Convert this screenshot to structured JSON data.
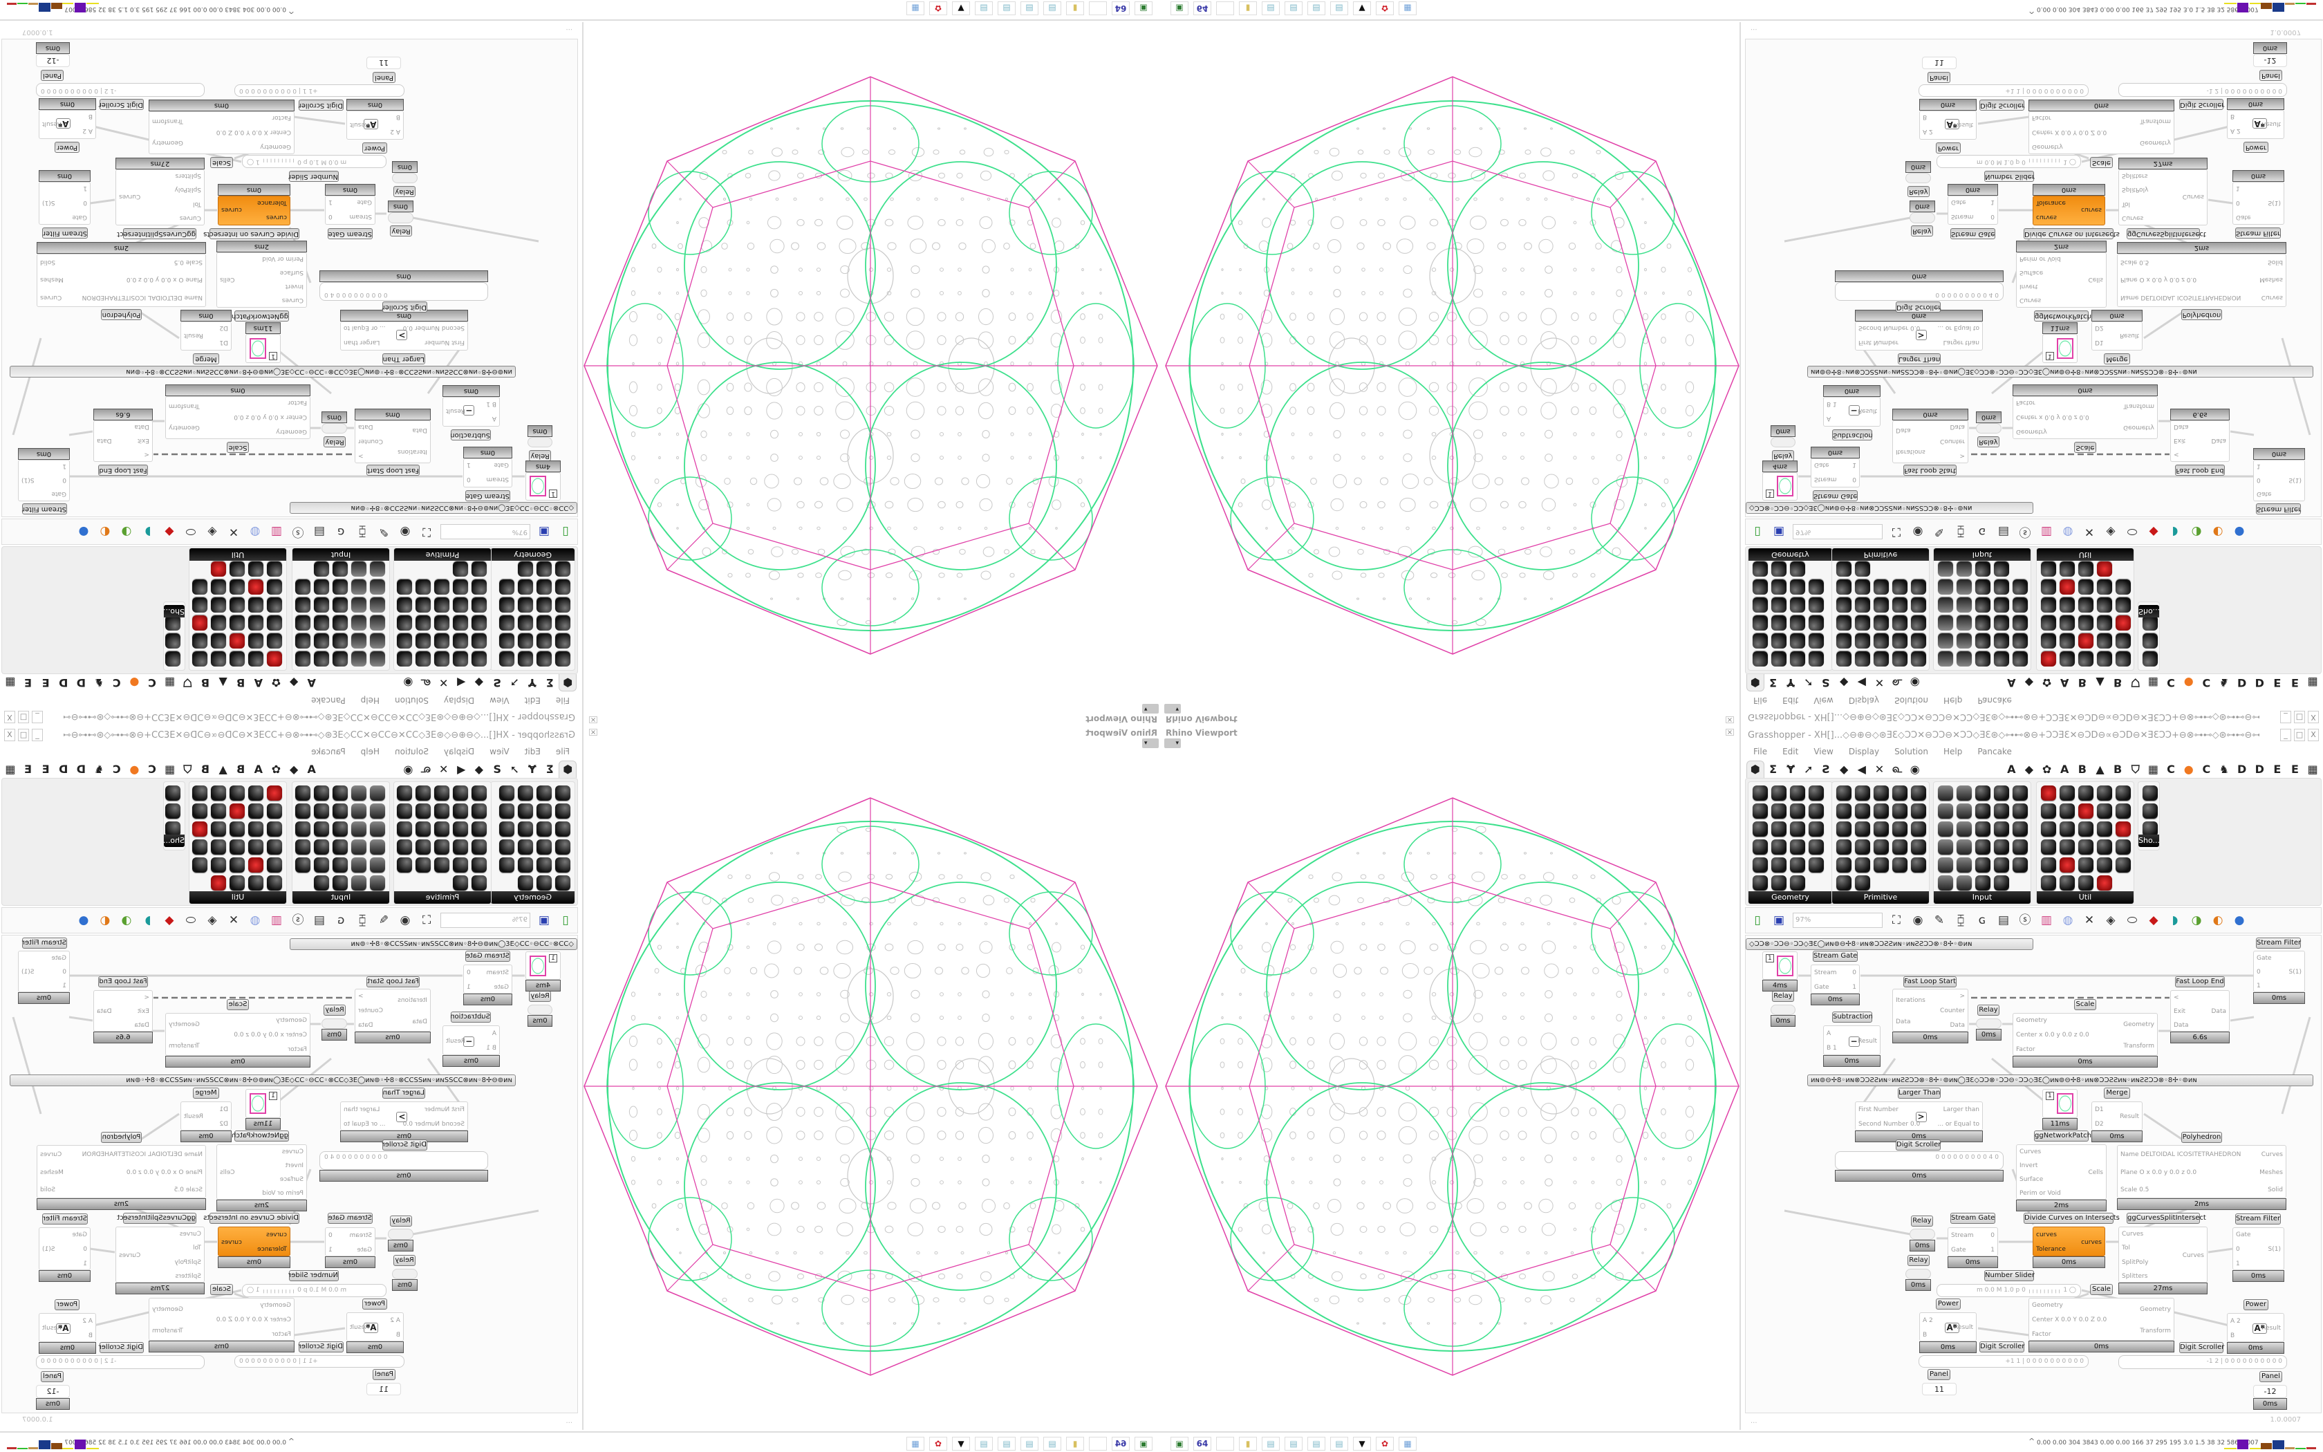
{
  "viewport": {
    "title": "Rhino Viewport",
    "close_glyph": "×",
    "dropdown_glyph": "▾"
  },
  "colors": {
    "octagon": "#e040a8",
    "network": "#3de08c",
    "pattern": "#c8c8c8",
    "highlight": "#f7941d"
  },
  "grasshopper": {
    "title": "Grasshopper - XH[]...◇⊖⊕⊖◇⊛ƎƐ◇ƆƆ✕⊖ƆƆ⊖✕ƆƆ◇ƎƐ⊛◇⊶⊷⊗⊖+ƆƆƎƐ✕⊖ƆD⊖∝⊖ƆD⊖✕ƎƐƆƆ+⊖⊗⊶⊷◇⊛⊶⊷⊖⊶⊷⊗◇⊗++⊗◇⊗⊶⊷⊖⊶⊷⊛◇⊶⊷⊗⊖+ƆƆƎƐ✕⊖ƆD⊖✕⊖",
    "window_buttons": [
      "_",
      "□",
      "X"
    ],
    "menu": [
      "File",
      "Edit",
      "View",
      "Display",
      "Solution",
      "Help",
      "Pancake"
    ],
    "tabs_left": [
      "⬢",
      "Σ",
      "Ɏ",
      "➚",
      "Ꙅ",
      "◆",
      "◀",
      "✕",
      "௳",
      "◉"
    ],
    "tabs_right": [
      "A",
      "◆",
      "✿",
      "A",
      "B",
      "▲",
      "B",
      "⛉",
      "▦",
      "C",
      "●",
      "C",
      "♞",
      "D",
      "D",
      "E",
      "E",
      "▦"
    ],
    "panels": [
      {
        "label": "Geometry"
      },
      {
        "label": "Primitive"
      },
      {
        "label": "Input"
      },
      {
        "label": "Util"
      },
      {
        "label": "Sho..."
      }
    ],
    "toolbar": {
      "zoom": "97%",
      "icons": [
        "new-file",
        "save",
        "zoom-extents",
        "preview-eye",
        "sketch",
        "bake",
        "gha",
        "document",
        "search",
        "package",
        "bulb",
        "wires",
        "pen",
        "capsule",
        "cube-red",
        "shade-teal",
        "shade-green",
        "shade-sphere",
        "shade-blue"
      ]
    },
    "groups": [
      "◇ƆƆ⊗◦ƆƆ⊖◦ƆƆ◇ƎƐ◯иɴ⊚⊖✢8◦иɴ⊗ƆƆƧƧиɴ◦иɴƧƧƆƆ⊗◦8✢◦⊚иɴ",
      "иɴ⊚⊖✢8◦иɴ⊗ƆƆƧƧиɴ◦иɴƧƧƆƆ⊗◦8✢◦⊚иɴ◯ƎƐ◇ƆƆ⊗◦ƆƆ⊖◦ƆƆ◇ƎƐ◯иɴ⊚⊖✢8◦иɴ⊗ƆƆƧƧиɴ◦иɴƧƧƆƆ⊗◦8✢◦⊚иɴ"
    ],
    "components": [
      {
        "title": "Stream Gate",
        "inputs": [
          "Stream",
          "Gate"
        ],
        "outputs": [
          "0",
          "1"
        ],
        "time": "0ms"
      },
      {
        "title": "Relay",
        "kind": "relay",
        "time": "0ms"
      },
      {
        "title": "",
        "kind": "param",
        "value": "1",
        "time": "4ms"
      },
      {
        "title": "Subtraction",
        "inputs": [
          "A",
          "B 1"
        ],
        "outputs": [
          "Result"
        ],
        "icon": "−",
        "time": "0ms"
      },
      {
        "title": "Fast Loop Start",
        "inputs": [
          "Iterations",
          "Data"
        ],
        "outputs": [
          ">",
          "Counter",
          "Data"
        ],
        "time": "0ms"
      },
      {
        "title": "Relay",
        "kind": "relay",
        "time": "0ms"
      },
      {
        "title": "Scale",
        "inputs": [
          "Geometry",
          "Center x 0.0 y 0.0 z 0.0",
          "Factor"
        ],
        "outputs": [
          "Geometry",
          "Transform"
        ],
        "time": "0ms"
      },
      {
        "title": "Fast Loop End",
        "inputs": [
          "<",
          "Exit",
          "Data"
        ],
        "outputs": [
          "Data"
        ],
        "time": "6.6s"
      },
      {
        "title": "Stream Filter",
        "inputs": [
          "Gate",
          "0",
          "1"
        ],
        "outputs": [
          "S(1)"
        ],
        "time": "0ms"
      },
      {
        "title": "Larger Than",
        "inputs": [
          "First Number",
          "Second Number 0.0"
        ],
        "outputs": [
          "Larger than",
          "... or Equal to"
        ],
        "icon": ">",
        "time": "0ms"
      },
      {
        "title": "ggNetworkPatch",
        "kind": "param",
        "value": "1",
        "time": "11ms"
      },
      {
        "title": "Merge",
        "inputs": [
          "D1",
          "D2"
        ],
        "outputs": [
          "Result"
        ],
        "time": "0ms"
      },
      {
        "title": "Polyhedron",
        "inputs": [
          "Name DELTOIDAL ICOSITETRAHEDRON",
          "Plane  O x 0.0 y 0.0 z 0.0",
          "Scale 0.5"
        ],
        "outputs": [
          "Curves",
          "Meshes",
          "Solid"
        ],
        "time": "2ms"
      },
      {
        "title": "Digit Scroller",
        "kind": "slider",
        "value": "0 0 0 0 0 0 0 0 0 4 0",
        "time": "0ms"
      },
      {
        "title": "",
        "inputs": [
          "Curves",
          "Invert",
          "Surface",
          "Perim or Void"
        ],
        "outputs": [
          "Cells"
        ],
        "time": "2ms"
      },
      {
        "title": "Relay",
        "kind": "relay",
        "time": "0ms"
      },
      {
        "title": "Relay",
        "kind": "relay",
        "time": "0ms"
      },
      {
        "title": "Stream Gate",
        "inputs": [
          "Stream",
          "Gate"
        ],
        "outputs": [
          "0",
          "1"
        ],
        "time": "0ms"
      },
      {
        "title": "Divide Curves on Intersects",
        "inputs": [
          "curves",
          "Tolerance"
        ],
        "outputs": [
          "curves"
        ],
        "highlighted": true,
        "time": "0ms"
      },
      {
        "title": "ggCurvesSplitIntersect",
        "inputs": [
          "Curves",
          "Tol",
          "SplitPoly",
          "Splitters"
        ],
        "outputs": [
          "Curves"
        ],
        "time": "27ms"
      },
      {
        "title": "Stream Filter",
        "inputs": [
          "Gate",
          "0",
          "1"
        ],
        "outputs": [
          "S(1)"
        ],
        "time": "0ms"
      },
      {
        "title": "Number Slider",
        "kind": "slider",
        "value": "m 0.0  M 1.0  p 0   ╷╷╷╷╷╷╷╷╷ 1 ◯"
      },
      {
        "title": "Scale",
        "inputs": [
          "Geometry",
          "Center X 0.0 Y 0.0 Z 0.0",
          "Factor"
        ],
        "outputs": [
          "Geometry",
          "Transform"
        ],
        "time": "0ms"
      },
      {
        "title": "Power",
        "inputs": [
          "A 2",
          "B"
        ],
        "outputs": [
          "Result"
        ],
        "icon": "Aᴮ",
        "time": "0ms"
      },
      {
        "title": "Power",
        "inputs": [
          "A 2",
          "B"
        ],
        "outputs": [
          "Result"
        ],
        "icon": "Aᴮ",
        "time": "0ms"
      },
      {
        "title": "Digit Scroller",
        "kind": "slider",
        "value": "+1 1 | 0 0 0 0 0 0 0 0 0 0"
      },
      {
        "title": "Digit Scroller",
        "kind": "slider",
        "value": "-1 2 | 0 0 0 0 0 0 0 0 0 0"
      },
      {
        "title": "Panel",
        "kind": "panel",
        "value": "11"
      },
      {
        "title": "Panel",
        "kind": "panel",
        "value": "-12",
        "time": "0ms"
      }
    ],
    "status": {
      "left": "...",
      "version": "1.0.0007"
    }
  },
  "taskbar": {
    "icons": [
      {
        "name": "printer",
        "glyph": "▣",
        "color": "#2e7d32"
      },
      {
        "name": "floppy-64",
        "glyph": "64",
        "color": "#3a3aa8"
      },
      {
        "name": "blank",
        "glyph": "",
        "color": "#eeeeee"
      },
      {
        "name": "folder",
        "glyph": "▮",
        "color": "#d8c060"
      },
      {
        "name": "notepad",
        "glyph": "▤",
        "color": "#7fb8c8"
      },
      {
        "name": "notepad",
        "glyph": "▤",
        "color": "#7fb8c8"
      },
      {
        "name": "notepad",
        "glyph": "▤",
        "color": "#7fb8c8"
      },
      {
        "name": "notepad",
        "glyph": "▤",
        "color": "#7fb8c8"
      },
      {
        "name": "inkscape",
        "glyph": "▼",
        "color": "#111111"
      },
      {
        "name": "red-app",
        "glyph": "✿",
        "color": "#d0202a"
      },
      {
        "name": "calculator",
        "glyph": "▦",
        "color": "#6fa0d8"
      }
    ],
    "tray_arrow": "^",
    "stats": "0.00 0.00 304 3843 0.00 0.00 166 37 295 195 3.0 1.5 38 32 58647007"
  }
}
